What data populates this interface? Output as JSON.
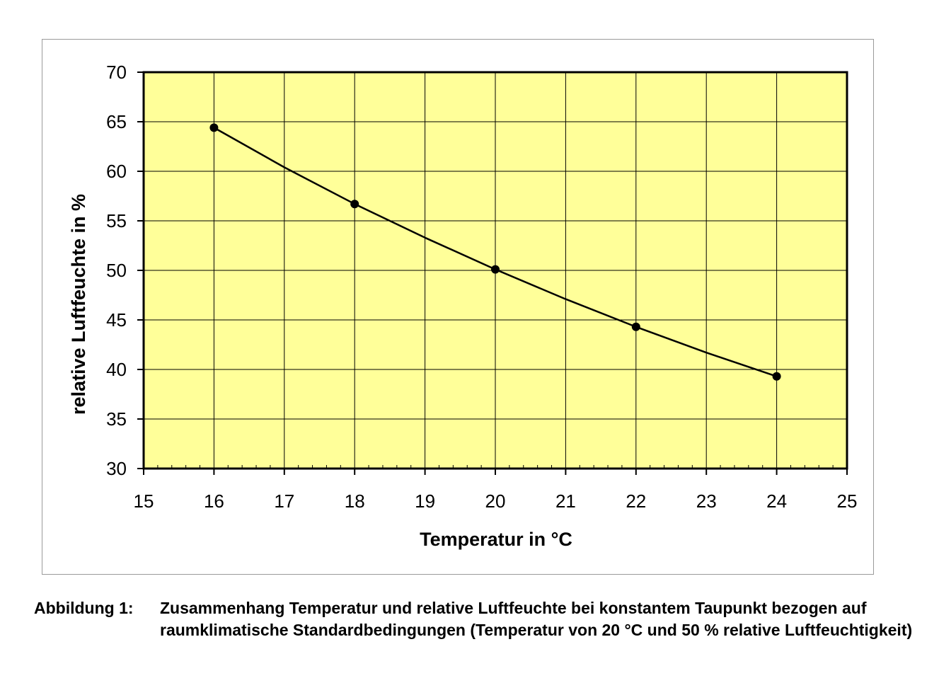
{
  "colors": {
    "plot_background": "#ffff99",
    "grid": "#000000",
    "line": "#000000",
    "marker": "#000000"
  },
  "chart_data": {
    "type": "line",
    "title": "",
    "xlabel": "Temperatur in °C",
    "ylabel": "relative Luftfeuchte in %",
    "xlim": [
      15,
      25
    ],
    "ylim": [
      30,
      70
    ],
    "x_ticks": [
      15,
      16,
      17,
      18,
      19,
      20,
      21,
      22,
      23,
      24,
      25
    ],
    "y_ticks": [
      30,
      35,
      40,
      45,
      50,
      55,
      60,
      65,
      70
    ],
    "grid": true,
    "legend": "none",
    "series": [
      {
        "x": [
          16,
          17,
          18,
          19,
          20,
          21,
          22,
          23,
          24
        ],
        "y": [
          64.4,
          60.4,
          56.7,
          53.3,
          50.1,
          47.1,
          44.3,
          41.7,
          39.3
        ],
        "marker_x": [
          16,
          18,
          20,
          22,
          24
        ],
        "marker_y": [
          64.4,
          56.7,
          50.1,
          44.3,
          39.3
        ]
      }
    ]
  },
  "caption": {
    "label": "Abbildung 1:",
    "text": "Zusammenhang Temperatur und relative Luftfeuchte bei konstantem Taupunkt bezogen auf raumklimatische Standardbedingungen (Temperatur von 20 °C und 50 % relative Luftfeuchtigkeit)"
  }
}
